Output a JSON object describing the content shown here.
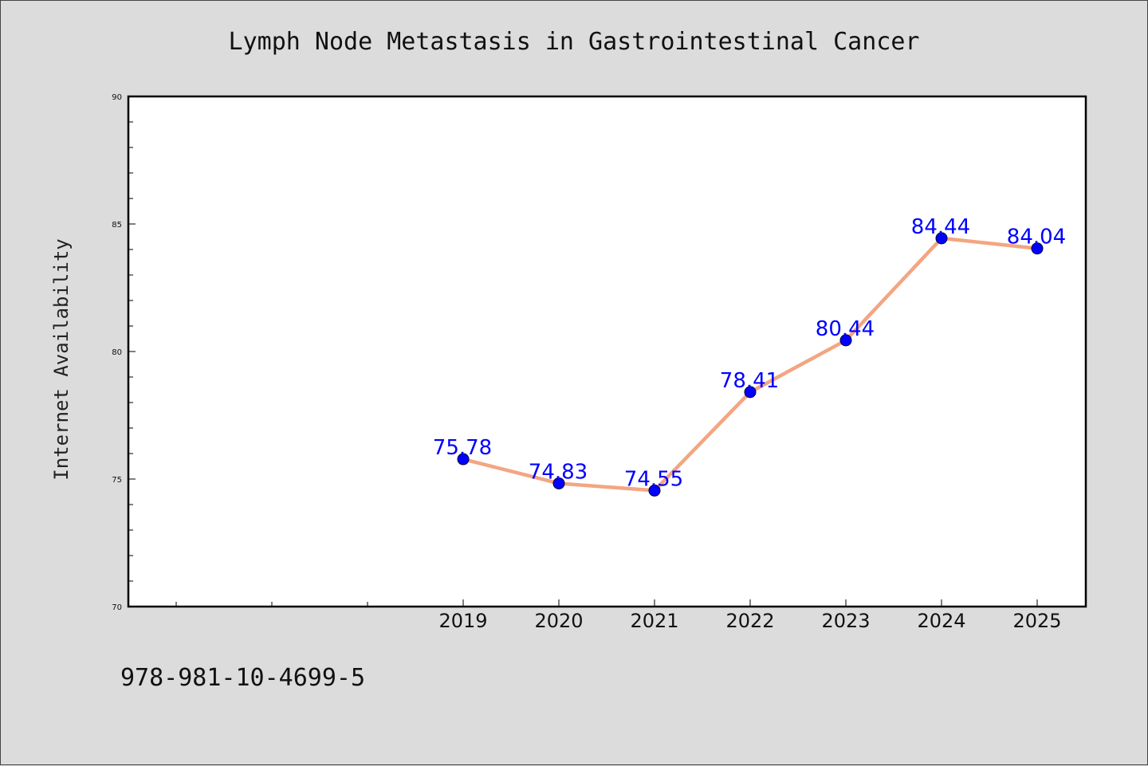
{
  "chart_data": {
    "type": "line",
    "title": "Lymph Node Metastasis in Gastrointestinal Cancer",
    "xlabel": "",
    "ylabel": "Internet Availability",
    "x": [
      "2019",
      "2020",
      "2021",
      "2022",
      "2023",
      "2024",
      "2025"
    ],
    "series": [
      {
        "values": [
          75.78,
          74.83,
          74.55,
          78.41,
          80.44,
          84.44,
          84.04
        ]
      }
    ],
    "data_labels": [
      "75.78",
      "74.83",
      "74.55",
      "78.41",
      "80.44",
      "84.44",
      "84.04"
    ],
    "ylim": [
      70,
      90
    ],
    "yticks": [
      "70",
      "75",
      "80",
      "85",
      "90"
    ],
    "grid": false,
    "line_color": "#f4a582",
    "marker_color": "#0000ff",
    "label_color": "#0000ff"
  },
  "footer_text": "978-981-10-4699-5"
}
